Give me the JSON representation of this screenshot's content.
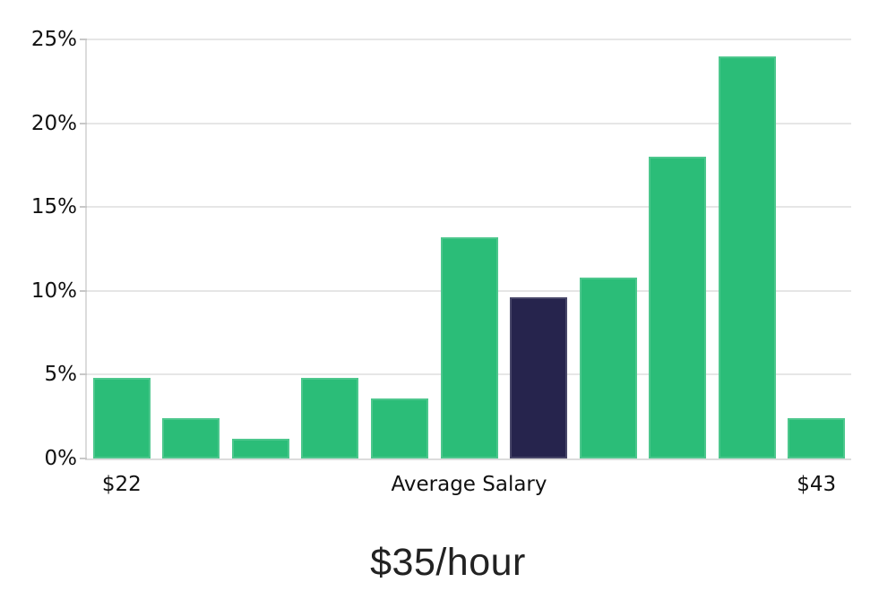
{
  "chart_data": {
    "type": "bar",
    "title": "$35/hour",
    "xlabel": "",
    "ylabel": "",
    "ylim": [
      0,
      25
    ],
    "y_ticks": [
      0,
      5,
      10,
      15,
      20,
      25
    ],
    "y_tick_suffix": "%",
    "grid": "horizontal",
    "legend": "none",
    "values": [
      4.8,
      2.4,
      1.2,
      4.8,
      3.6,
      13.2,
      9.6,
      10.8,
      18.0,
      24.0,
      2.4
    ],
    "highlight_index": 6,
    "highlight_meaning": "Average Salary",
    "x_tick_labels": [
      {
        "text": "$22",
        "bar_index": 0
      },
      {
        "text": "Average Salary",
        "position": "center"
      },
      {
        "text": "$43",
        "bar_index": 10
      }
    ],
    "colors": {
      "bar": "#2bbd78",
      "highlight_bar": "#26244d",
      "gridline": "#e6e6e6",
      "spine": "#dcdcdc",
      "tick": "#c8c8c8",
      "label_text": "#111111",
      "title_text": "#222222",
      "background": "#ffffff"
    }
  }
}
